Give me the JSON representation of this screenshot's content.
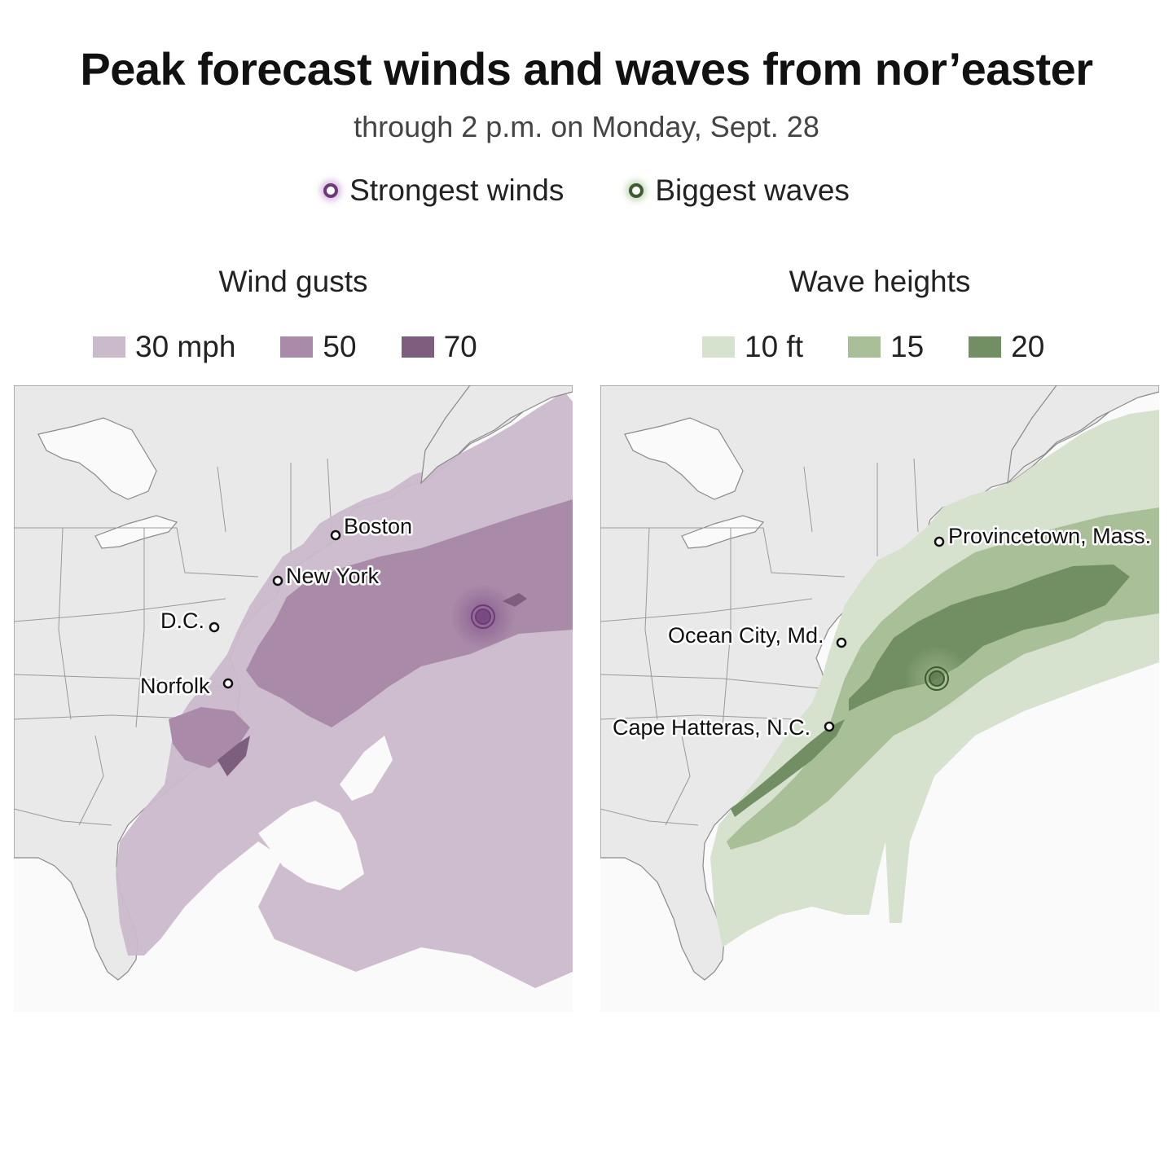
{
  "title": "Peak forecast winds and waves from nor’easter",
  "subtitle": "through 2 p.m. on Monday, Sept. 28",
  "legend": {
    "strongest_winds": "Strongest winds",
    "biggest_waves": "Biggest waves"
  },
  "wind_panel": {
    "title": "Wind gusts",
    "scale": [
      {
        "label": "30 mph",
        "color": "#cbb9cc"
      },
      {
        "label": "50",
        "color": "#a98aa9"
      },
      {
        "label": "70",
        "color": "#7d5e7f"
      }
    ],
    "cities": {
      "boston": "Boston",
      "new_york": "New York",
      "dc": "D.C.",
      "norfolk": "Norfolk"
    }
  },
  "wave_panel": {
    "title": "Wave heights",
    "scale": [
      {
        "label": "10 ft",
        "color": "#d6e1ce"
      },
      {
        "label": "15",
        "color": "#a8bf97"
      },
      {
        "label": "20",
        "color": "#728f63"
      }
    ],
    "cities": {
      "provincetown": "Provincetown, Mass.",
      "ocean_city": "Ocean City, Md.",
      "cape_hatteras": "Cape Hatteras, N.C."
    }
  },
  "colors": {
    "land": "#e9e9e9",
    "water": "#fafafa",
    "border": "#8a8a8a",
    "purple_marker": "#6d3a78",
    "green_marker": "#3e5c30"
  }
}
